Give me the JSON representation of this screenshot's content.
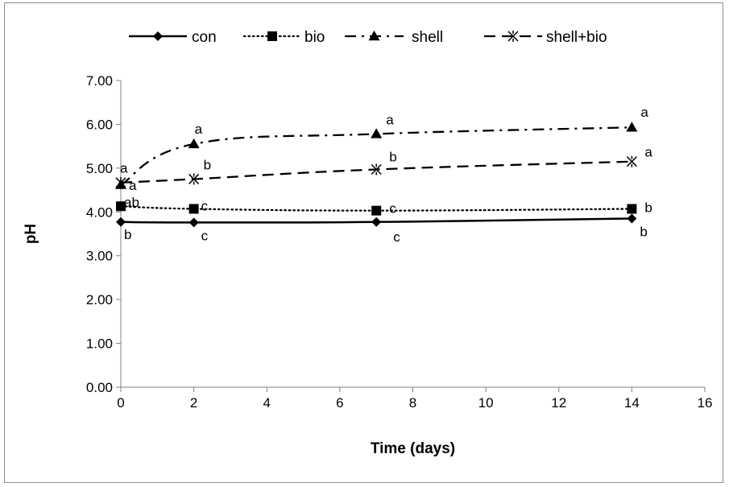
{
  "chart_data": {
    "type": "line",
    "xlabel": "Time (days)",
    "ylabel": "pH",
    "xlim": [
      0,
      16
    ],
    "ylim": [
      0,
      7
    ],
    "x_ticks": [
      "0",
      "2",
      "4",
      "6",
      "8",
      "10",
      "12",
      "14",
      "16"
    ],
    "y_ticks": [
      "0.00",
      "1.00",
      "2.00",
      "3.00",
      "4.00",
      "5.00",
      "6.00",
      "7.00"
    ],
    "grid": false,
    "legend_position": "top",
    "x": [
      0,
      2,
      7,
      14
    ],
    "series": [
      {
        "name": "con",
        "values": [
          3.77,
          3.76,
          3.77,
          3.85
        ],
        "marker": "diamond",
        "line_style": "solid",
        "letters": [
          "b",
          "c",
          "c",
          "b"
        ]
      },
      {
        "name": "bio",
        "values": [
          4.13,
          4.07,
          4.03,
          4.07
        ],
        "marker": "square",
        "line_style": "dotted",
        "letters": [
          "ab",
          "c",
          "c",
          "b"
        ]
      },
      {
        "name": "shell",
        "values": [
          4.62,
          5.55,
          5.78,
          5.93
        ],
        "marker": "triangle",
        "line_style": "dash-dot",
        "letters": [
          "a",
          "a",
          "a",
          "a"
        ]
      },
      {
        "name": "shell+bio",
        "values": [
          4.67,
          4.75,
          4.97,
          5.15
        ],
        "marker": "x-star",
        "line_style": "dashed",
        "letters": [
          "a",
          "b",
          "b",
          "a"
        ]
      }
    ]
  }
}
